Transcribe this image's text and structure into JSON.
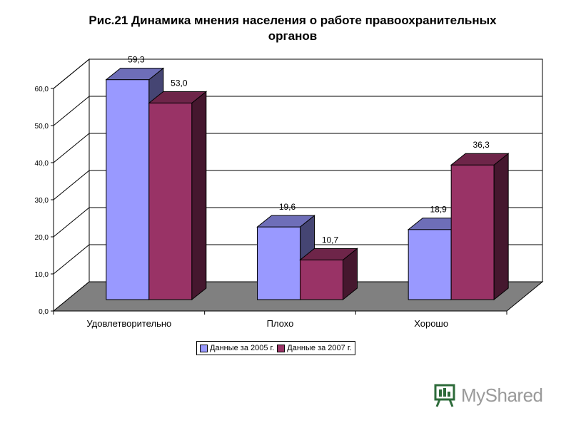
{
  "chart_data": {
    "type": "bar",
    "title_line1": "Рис.21   Динамика мнения населения о работе правоохранительных",
    "title_line2": "органов",
    "categories": [
      "Удовлетворительно",
      "Плохо",
      "Хорошо"
    ],
    "series": [
      {
        "name": "Данные за 2005 г.",
        "values": [
          59.3,
          19.6,
          18.9
        ],
        "labels": [
          "59,3",
          "19,6",
          "18,9"
        ],
        "color": "#9999ff"
      },
      {
        "name": "Данные за 2007 г.",
        "values": [
          53.0,
          10.7,
          36.3
        ],
        "labels": [
          "53,0",
          "10,7",
          "36,3"
        ],
        "color": "#993366"
      }
    ],
    "y_ticks": [
      "0,0",
      "10,0",
      "20,0",
      "30,0",
      "40,0",
      "50,0",
      "60,0"
    ],
    "ylim": [
      0,
      60
    ],
    "grid": true,
    "legend_position": "bottom",
    "three_d": true,
    "floor_color": "#808080"
  },
  "watermark": {
    "text": "MyShared",
    "icon": "presentation-board-icon"
  }
}
